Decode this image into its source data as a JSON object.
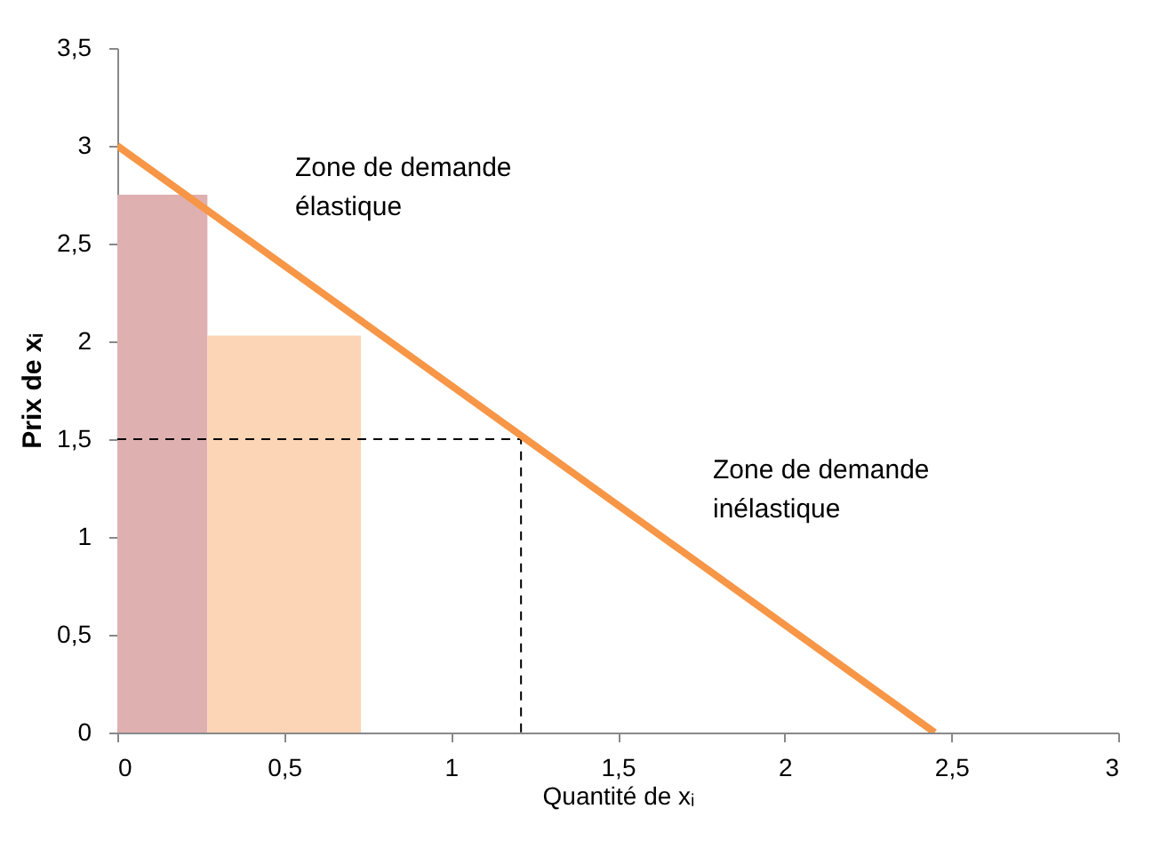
{
  "chart_data": {
    "type": "line",
    "xlabel": "Quantité de xᵢ",
    "ylabel": "Prix de xᵢ",
    "xlim": [
      0,
      3
    ],
    "ylim": [
      0,
      3.5
    ],
    "xticks": [
      0,
      {
        "value": 0.5,
        "label": "0,5"
      },
      1,
      {
        "value": 1.5,
        "label": "1,5"
      },
      2,
      {
        "value": 2.5,
        "label": "2,5"
      },
      3
    ],
    "yticks": [
      0,
      {
        "value": 0.5,
        "label": "0,5"
      },
      1,
      {
        "value": 1.5,
        "label": "1,5"
      },
      2,
      {
        "value": 2.5,
        "label": "2,5"
      },
      3,
      {
        "value": 3.5,
        "label": "3,5"
      }
    ],
    "grid": false,
    "marker": "none",
    "series": [
      {
        "type": "area",
        "color": "#dfb0b0",
        "x": [
          0,
          0.27
        ],
        "values": [
          2.75,
          2.75
        ]
      },
      {
        "type": "area",
        "color": "#fbd5b5",
        "x": [
          0.27,
          0.73
        ],
        "values": [
          2.03,
          2.03
        ]
      },
      {
        "type": "line",
        "color": "#000000",
        "line_style": "dashed",
        "x": [
          0,
          1.21,
          1.21
        ],
        "values": [
          1.5,
          1.5,
          0
        ]
      },
      {
        "type": "line",
        "color": "#f79646",
        "line_style": "solid",
        "x": [
          0,
          2.45
        ],
        "values": [
          3,
          0
        ]
      }
    ],
    "annotations": [
      "Zone de demande\nélastique",
      "Zone de demande\ninélastique"
    ]
  }
}
